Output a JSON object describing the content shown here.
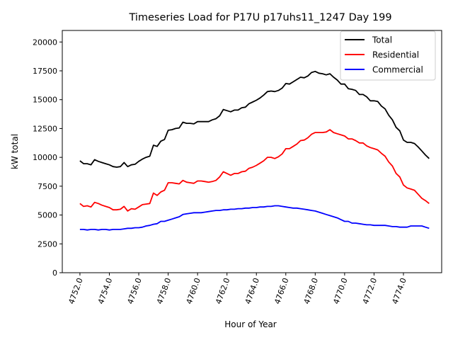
{
  "chart_data": {
    "type": "line",
    "title": "Timeseries Load for P17U p17uhs11_1247  Day 199",
    "xlabel": "Hour of Year",
    "ylabel": "kW total",
    "xlim": [
      4750.8,
      4776.6
    ],
    "ylim": [
      0,
      21000
    ],
    "xticks": [
      4752,
      4754,
      4756,
      4758,
      4760,
      4762,
      4764,
      4766,
      4768,
      4770,
      4772,
      4774
    ],
    "xtick_labels": [
      "4752.0",
      "4754.0",
      "4756.0",
      "4758.0",
      "4760.0",
      "4762.0",
      "4764.0",
      "4766.0",
      "4768.0",
      "4770.0",
      "4772.0",
      "4774.0"
    ],
    "yticks": [
      0,
      2500,
      5000,
      7500,
      10000,
      12500,
      15000,
      17500,
      20000
    ],
    "ytick_labels": [
      "0",
      "2500",
      "5000",
      "7500",
      "10000",
      "12500",
      "15000",
      "17500",
      "20000"
    ],
    "grid": false,
    "legend_position": "top-right",
    "x_start": 4752,
    "x_step": 0.25,
    "series": [
      {
        "name": "Total",
        "color": "#000000",
        "values": [
          9700,
          9450,
          9450,
          9350,
          9800,
          9650,
          9550,
          9450,
          9350,
          9200,
          9150,
          9200,
          9550,
          9200,
          9350,
          9400,
          9650,
          9850,
          10000,
          10100,
          11050,
          10950,
          11400,
          11550,
          12350,
          12400,
          12500,
          12550,
          13050,
          12950,
          12950,
          12900,
          13100,
          13100,
          13100,
          13100,
          13250,
          13350,
          13600,
          14150,
          14050,
          13950,
          14100,
          14100,
          14300,
          14350,
          14650,
          14800,
          14950,
          15150,
          15400,
          15700,
          15750,
          15700,
          15800,
          16000,
          16400,
          16350,
          16550,
          16750,
          16950,
          16900,
          17050,
          17350,
          17450,
          17300,
          17250,
          17150,
          17250,
          16950,
          16700,
          16350,
          16350,
          15950,
          15900,
          15800,
          15450,
          15450,
          15250,
          14900,
          14900,
          14850,
          14450,
          14200,
          13650,
          13250,
          12600,
          12300,
          11500,
          11300,
          11300,
          11200,
          10900,
          10550,
          10200,
          9900
        ]
      },
      {
        "name": "Residential",
        "color": "#ff0000",
        "values": [
          6000,
          5750,
          5800,
          5700,
          6100,
          6000,
          5850,
          5750,
          5650,
          5450,
          5450,
          5500,
          5750,
          5350,
          5550,
          5500,
          5700,
          5900,
          5950,
          6000,
          6900,
          6700,
          7000,
          7150,
          7800,
          7800,
          7750,
          7700,
          8000,
          7850,
          7800,
          7750,
          7950,
          7950,
          7900,
          7850,
          7900,
          8000,
          8300,
          8750,
          8600,
          8450,
          8600,
          8600,
          8750,
          8800,
          9050,
          9150,
          9300,
          9500,
          9700,
          10000,
          10000,
          9900,
          10050,
          10300,
          10750,
          10750,
          10950,
          11150,
          11450,
          11500,
          11700,
          12000,
          12150,
          12150,
          12150,
          12200,
          12400,
          12150,
          12050,
          11950,
          11850,
          11600,
          11600,
          11450,
          11250,
          11250,
          11000,
          10850,
          10750,
          10650,
          10350,
          10100,
          9600,
          9250,
          8600,
          8300,
          7600,
          7350,
          7250,
          7150,
          6800,
          6450,
          6250,
          6000
        ]
      },
      {
        "name": "Commercial",
        "color": "#0000ff",
        "values": [
          3750,
          3750,
          3700,
          3750,
          3750,
          3700,
          3750,
          3750,
          3700,
          3750,
          3750,
          3750,
          3800,
          3850,
          3850,
          3900,
          3900,
          3950,
          4050,
          4100,
          4200,
          4250,
          4450,
          4450,
          4550,
          4650,
          4750,
          4850,
          5050,
          5100,
          5150,
          5200,
          5200,
          5200,
          5250,
          5300,
          5350,
          5400,
          5400,
          5450,
          5450,
          5500,
          5500,
          5550,
          5550,
          5600,
          5600,
          5650,
          5650,
          5700,
          5700,
          5750,
          5750,
          5800,
          5800,
          5750,
          5700,
          5650,
          5600,
          5600,
          5550,
          5500,
          5450,
          5400,
          5350,
          5250,
          5150,
          5050,
          4950,
          4850,
          4750,
          4600,
          4450,
          4450,
          4300,
          4300,
          4250,
          4200,
          4150,
          4150,
          4100,
          4100,
          4100,
          4100,
          4050,
          4000,
          4000,
          3950,
          3950,
          3950,
          4050,
          4050,
          4050,
          4050,
          3950,
          3850
        ]
      }
    ]
  }
}
